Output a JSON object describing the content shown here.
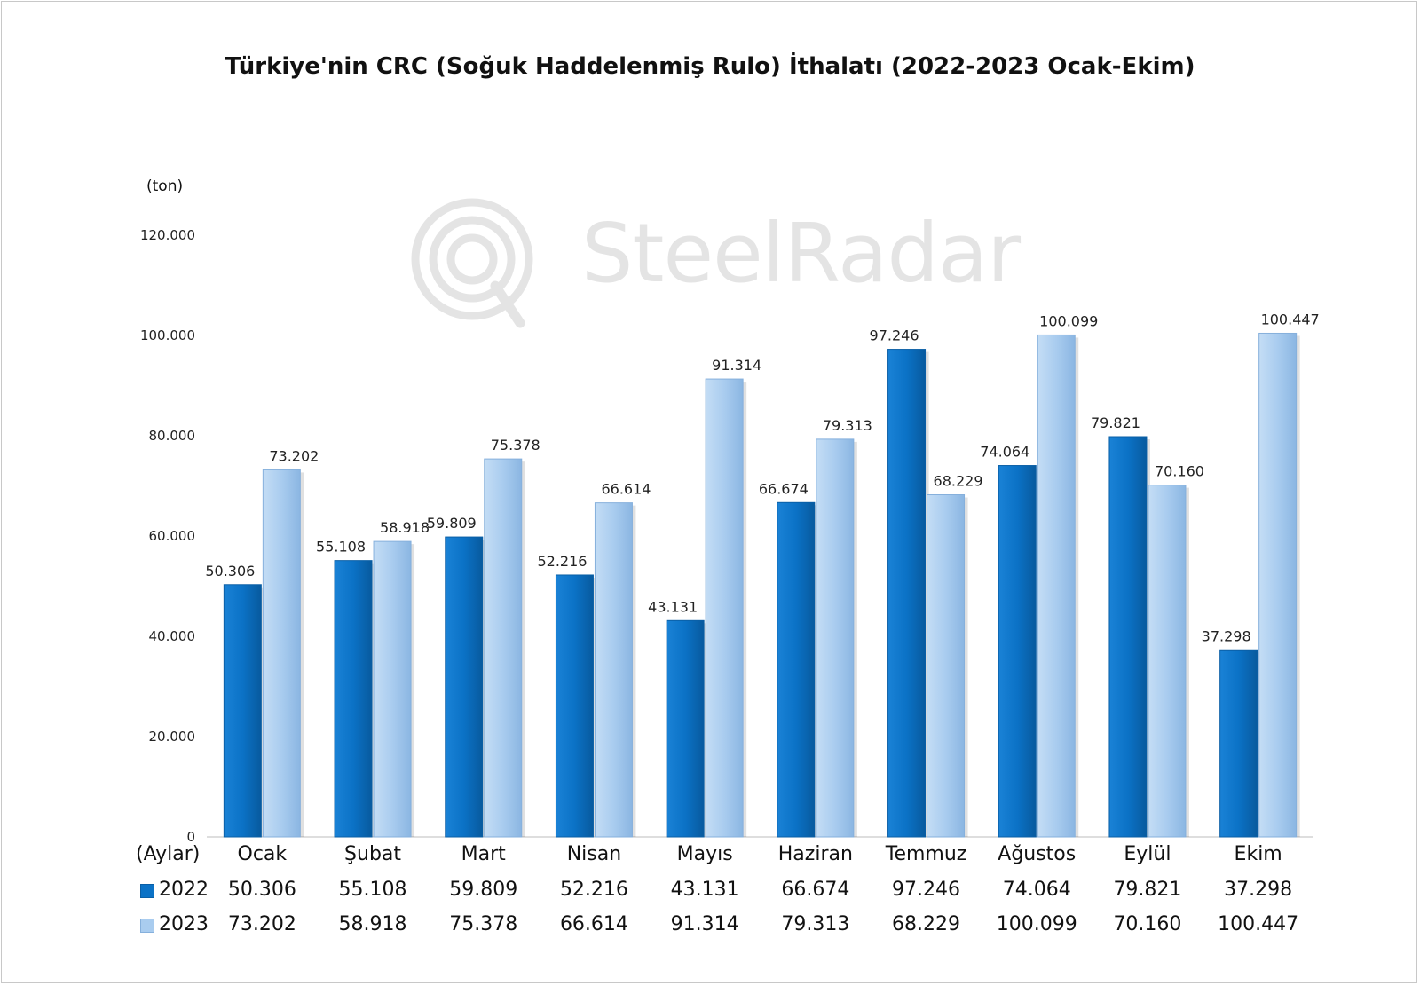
{
  "chart_data": {
    "type": "bar",
    "title": "Türkiye'nin CRC (Soğuk Haddelenmiş Rulo) İthalatı (2022-2023 Ocak-Ekim)",
    "unit_label": "(ton)",
    "category_header": "(Aylar)",
    "categories": [
      "Ocak",
      "Şubat",
      "Mart",
      "Nisan",
      "Mayıs",
      "Haziran",
      "Temmuz",
      "Ağustos",
      "Eylül",
      "Ekim"
    ],
    "series": [
      {
        "name": "2022",
        "color": "#0b72c6",
        "values": [
          50306,
          55108,
          59809,
          52216,
          43131,
          66674,
          97246,
          74064,
          79821,
          37298
        ],
        "labels": [
          "50.306",
          "55.108",
          "59.809",
          "52.216",
          "43.131",
          "66.674",
          "97.246",
          "74.064",
          "79.821",
          "37.298"
        ]
      },
      {
        "name": "2023",
        "color": "#a9ccef",
        "values": [
          73202,
          58918,
          75378,
          66614,
          91314,
          79313,
          68229,
          100099,
          70160,
          100447
        ],
        "labels": [
          "73.202",
          "58.918",
          "75.378",
          "66.614",
          "91.314",
          "79.313",
          "68.229",
          "100.099",
          "70.160",
          "100.447"
        ]
      }
    ],
    "ylim": [
      0,
      120000
    ],
    "yticks": [
      0,
      20000,
      40000,
      60000,
      80000,
      100000,
      120000
    ],
    "ytick_labels": [
      "0",
      "20.000",
      "40.000",
      "60.000",
      "80.000",
      "100.000",
      "120.000"
    ],
    "grid": false,
    "legend": "data-table-below"
  },
  "watermark": "SteelRadar"
}
